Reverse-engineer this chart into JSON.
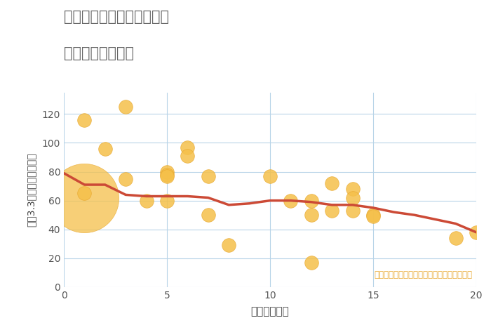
{
  "title_line1": "大阪府大阪市此花区桜島の",
  "title_line2": "駅距離別土地価格",
  "xlabel": "駅距離（分）",
  "ylabel": "坪（3.3㎡）単価（万円）",
  "annotation": "円の大きさは、取引のあった物件面積を示す",
  "scatter_x": [
    1,
    1,
    2,
    3,
    3,
    4,
    5,
    5,
    5,
    5,
    6,
    6,
    7,
    7,
    8,
    10,
    11,
    12,
    12,
    12,
    13,
    13,
    14,
    14,
    14,
    15,
    15,
    19,
    20
  ],
  "scatter_y": [
    116,
    65,
    96,
    125,
    75,
    60,
    80,
    78,
    77,
    60,
    97,
    91,
    77,
    50,
    29,
    77,
    60,
    17,
    60,
    50,
    72,
    53,
    68,
    62,
    53,
    50,
    49,
    34,
    38
  ],
  "big_bubble_x": 1,
  "big_bubble_y": 62,
  "big_bubble_size": 5000,
  "trend_x": [
    0,
    1,
    2,
    3,
    4,
    5,
    6,
    7,
    8,
    9,
    10,
    11,
    12,
    13,
    14,
    15,
    16,
    17,
    18,
    19,
    20
  ],
  "trend_y": [
    79,
    71,
    71,
    64,
    63,
    63,
    63,
    62,
    57,
    58,
    60,
    60,
    59,
    57,
    57,
    55,
    52,
    50,
    47,
    44,
    38
  ],
  "scatter_color": "#F5C04A",
  "scatter_edge_color": "#E8A830",
  "trend_color": "#CC4A36",
  "background_color": "#FFFFFF",
  "grid_color": "#B8D4E8",
  "title_color": "#666666",
  "annotation_color": "#E8A830",
  "xlim": [
    0,
    20
  ],
  "ylim": [
    0,
    135
  ],
  "xticks": [
    0,
    5,
    10,
    15,
    20
  ],
  "yticks": [
    0,
    20,
    40,
    60,
    80,
    100,
    120
  ]
}
